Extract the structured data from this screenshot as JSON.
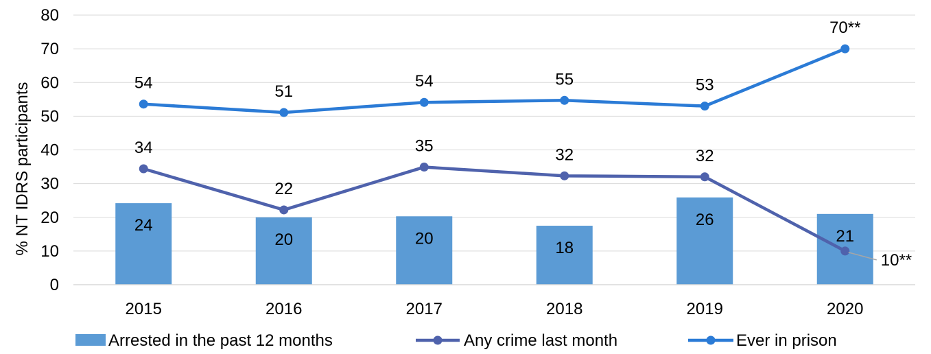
{
  "chart_data": {
    "type": "bar",
    "categories": [
      "2015",
      "2016",
      "2017",
      "2018",
      "2019",
      "2020"
    ],
    "ylabel": "% NT IDRS participants",
    "ylim": [
      0,
      80
    ],
    "yticks": [
      "0",
      "10",
      "20",
      "30",
      "40",
      "50",
      "60",
      "70",
      "80"
    ],
    "grid": true,
    "legend_position": "bottom",
    "series": [
      {
        "name": "Arrested in the past 12 months",
        "type": "bar",
        "color": "#5B9BD5",
        "values": [
          24.2,
          20,
          20.3,
          17.5,
          25.9,
          21
        ],
        "labels": [
          "24",
          "20",
          "20",
          "18",
          "26",
          "21"
        ]
      },
      {
        "name": "Any crime last month",
        "type": "line",
        "color": "#4F62AC",
        "values": [
          34.4,
          22.2,
          34.9,
          32.3,
          32,
          10
        ],
        "labels": [
          "34",
          "22",
          "35",
          "32",
          "32",
          "10**"
        ]
      },
      {
        "name": "Ever in prison",
        "type": "line",
        "color": "#2B7BD6",
        "values": [
          53.6,
          51.1,
          54.1,
          54.7,
          53,
          70
        ],
        "labels": [
          "54",
          "51",
          "54",
          "55",
          "53",
          "70**"
        ]
      }
    ]
  }
}
